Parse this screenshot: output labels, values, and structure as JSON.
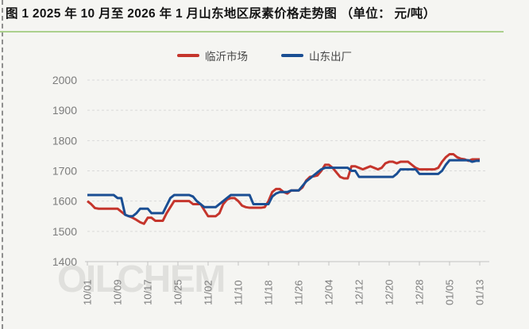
{
  "title": "图 1 2025 年 10 月至 2026 年 1 月山东地区尿素价格走势图 （单位： 元/吨）",
  "watermark": "OILCHEM",
  "legend": {
    "items": [
      {
        "label": "临沂市场",
        "color": "#c5352c"
      },
      {
        "label": "山东出厂",
        "color": "#1a4e93"
      }
    ]
  },
  "chart_data": {
    "type": "line",
    "title": "图 1 2025 年 10 月至 2026 年 1 月山东地区尿素价格走势图",
    "unit": "元/吨",
    "ylim": [
      1400,
      2000
    ],
    "yticks": [
      1400,
      1500,
      1600,
      1700,
      1800,
      1900,
      2000
    ],
    "grid": "dashed-horizontal",
    "legend_position": "top-center",
    "xtick_labels": [
      "10/01",
      "10/09",
      "10/17",
      "10/25",
      "11/02",
      "11/10",
      "11/18",
      "11/26",
      "12/04",
      "12/12",
      "12/20",
      "12/28",
      "01/05",
      "01/13"
    ],
    "x": [
      "10/01",
      "10/02",
      "10/03",
      "10/04",
      "10/05",
      "10/06",
      "10/07",
      "10/08",
      "10/09",
      "10/10",
      "10/11",
      "10/12",
      "10/13",
      "10/14",
      "10/15",
      "10/16",
      "10/17",
      "10/18",
      "10/19",
      "10/20",
      "10/21",
      "10/22",
      "10/23",
      "10/24",
      "10/25",
      "10/26",
      "10/27",
      "10/28",
      "10/29",
      "10/30",
      "10/31",
      "11/01",
      "11/02",
      "11/03",
      "11/04",
      "11/05",
      "11/06",
      "11/07",
      "11/08",
      "11/09",
      "11/10",
      "11/11",
      "11/12",
      "11/13",
      "11/14",
      "11/15",
      "11/16",
      "11/17",
      "11/18",
      "11/19",
      "11/20",
      "11/21",
      "11/22",
      "11/23",
      "11/24",
      "11/25",
      "11/26",
      "11/27",
      "11/28",
      "11/29",
      "11/30",
      "12/01",
      "12/02",
      "12/03",
      "12/04",
      "12/05",
      "12/06",
      "12/07",
      "12/08",
      "12/09",
      "12/10",
      "12/11",
      "12/12",
      "12/13",
      "12/14",
      "12/15",
      "12/16",
      "12/17",
      "12/18",
      "12/19",
      "12/20",
      "12/21",
      "12/22",
      "12/23",
      "12/24",
      "12/25",
      "12/26",
      "12/27",
      "12/28",
      "12/29",
      "12/30",
      "12/31",
      "01/01",
      "01/02",
      "01/03",
      "01/04",
      "01/05",
      "01/06",
      "01/07",
      "01/08",
      "01/09",
      "01/10",
      "01/11",
      "01/12",
      "01/13"
    ],
    "series": [
      {
        "name": "临沂市场",
        "color": "#c5352c",
        "values": [
          1600,
          1590,
          1577,
          1575,
          1575,
          1575,
          1575,
          1575,
          1575,
          1565,
          1555,
          1550,
          1545,
          1538,
          1530,
          1525,
          1545,
          1545,
          1535,
          1535,
          1535,
          1560,
          1580,
          1600,
          1600,
          1600,
          1600,
          1600,
          1590,
          1590,
          1590,
          1570,
          1550,
          1550,
          1550,
          1560,
          1590,
          1605,
          1610,
          1610,
          1600,
          1585,
          1580,
          1578,
          1578,
          1578,
          1578,
          1580,
          1600,
          1630,
          1640,
          1640,
          1630,
          1625,
          1635,
          1635,
          1635,
          1645,
          1668,
          1680,
          1682,
          1685,
          1700,
          1720,
          1720,
          1710,
          1695,
          1680,
          1675,
          1675,
          1715,
          1715,
          1710,
          1705,
          1710,
          1715,
          1710,
          1705,
          1710,
          1725,
          1730,
          1730,
          1725,
          1730,
          1730,
          1730,
          1720,
          1710,
          1705,
          1705,
          1705,
          1705,
          1705,
          1710,
          1730,
          1745,
          1755,
          1755,
          1745,
          1740,
          1738,
          1733,
          1738,
          1738,
          1738
        ]
      },
      {
        "name": "山东出厂",
        "color": "#1a4e93",
        "values": [
          1620,
          1620,
          1620,
          1620,
          1620,
          1620,
          1620,
          1620,
          1610,
          1610,
          1555,
          1550,
          1550,
          1560,
          1575,
          1575,
          1575,
          1560,
          1560,
          1560,
          1560,
          1585,
          1610,
          1620,
          1620,
          1620,
          1620,
          1620,
          1615,
          1600,
          1590,
          1580,
          1580,
          1580,
          1580,
          1590,
          1600,
          1610,
          1620,
          1620,
          1620,
          1620,
          1620,
          1620,
          1590,
          1590,
          1590,
          1590,
          1590,
          1615,
          1625,
          1630,
          1630,
          1630,
          1635,
          1635,
          1635,
          1650,
          1665,
          1675,
          1685,
          1695,
          1705,
          1710,
          1710,
          1710,
          1710,
          1710,
          1710,
          1710,
          1700,
          1700,
          1680,
          1680,
          1680,
          1680,
          1680,
          1680,
          1680,
          1680,
          1680,
          1680,
          1690,
          1705,
          1705,
          1705,
          1705,
          1705,
          1690,
          1690,
          1690,
          1690,
          1690,
          1690,
          1700,
          1720,
          1735,
          1735,
          1735,
          1735,
          1735,
          1735,
          1730,
          1733,
          1733
        ]
      }
    ]
  }
}
